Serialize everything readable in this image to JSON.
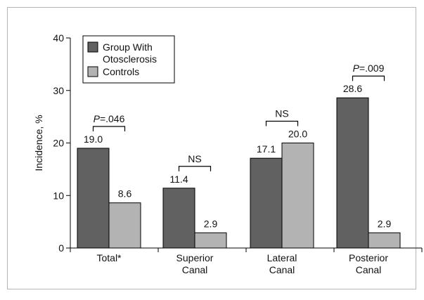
{
  "chart_data": {
    "type": "bar",
    "title": "",
    "ylabel": "Incidence, %",
    "xlabel": "",
    "ylim": [
      0,
      40
    ],
    "yticks": [
      0,
      10,
      20,
      30,
      40
    ],
    "grid": false,
    "legend_position": "top-left",
    "categories": [
      [
        "Total*"
      ],
      [
        "Superior",
        "Canal"
      ],
      [
        "Lateral",
        "Canal"
      ],
      [
        "Posterior",
        "Canal"
      ]
    ],
    "series": [
      {
        "name": "Group With Otosclerosis",
        "legend_lines": [
          "Group With",
          "Otosclerosis"
        ],
        "color": "#616161",
        "values": [
          19.0,
          11.4,
          17.1,
          28.6
        ],
        "labels": [
          "19.0",
          "11.4",
          "17.1",
          "28.6"
        ]
      },
      {
        "name": "Controls",
        "legend_lines": [
          "Controls"
        ],
        "color": "#b3b3b3",
        "values": [
          8.6,
          2.9,
          20.0,
          2.9
        ],
        "labels": [
          "8.6",
          "2.9",
          "20.0",
          "2.9"
        ]
      }
    ],
    "annotations": [
      {
        "category": 0,
        "text": "P=.046",
        "p_letter": "P",
        "p_rest": "=.046"
      },
      {
        "category": 1,
        "text": "NS"
      },
      {
        "category": 2,
        "text": "NS"
      },
      {
        "category": 3,
        "text": "P=.009",
        "p_letter": "P",
        "p_rest": "=.009"
      }
    ]
  }
}
